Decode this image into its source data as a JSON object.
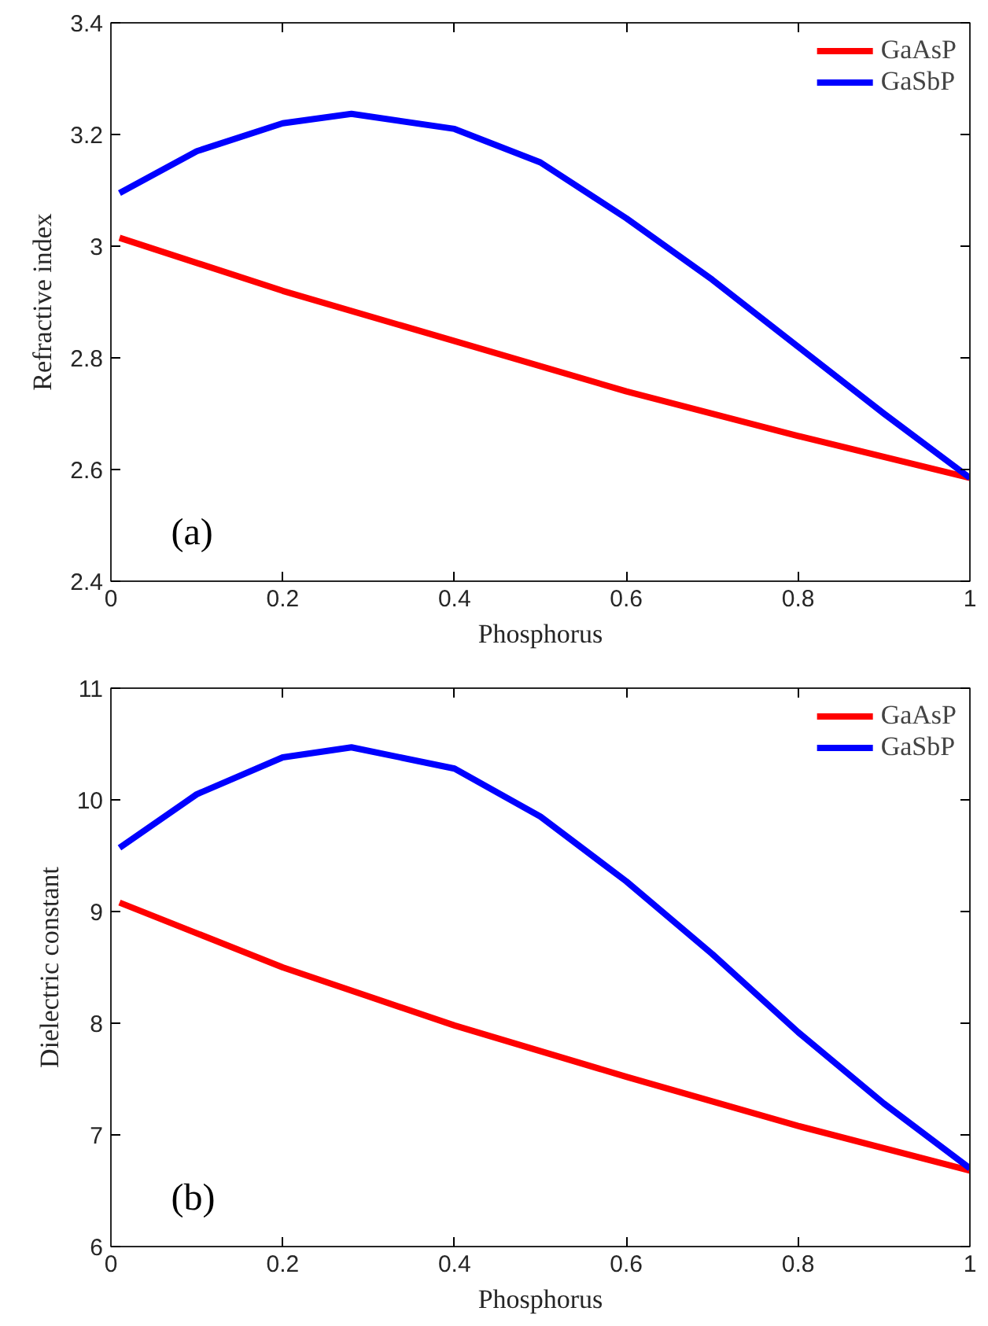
{
  "chart_data": [
    {
      "type": "line",
      "xlabel": "Phosphorus",
      "ylabel": "Refractive index",
      "annotations": [
        "(a)"
      ],
      "xlim": [
        0,
        1
      ],
      "ylim": [
        2.4,
        3.4
      ],
      "xticks": [
        0,
        0.2,
        0.4,
        0.6,
        0.8,
        1
      ],
      "yticks": [
        2.4,
        2.6,
        2.8,
        3,
        3.2,
        3.4
      ],
      "grid": false,
      "legend": "top right",
      "series": [
        {
          "name": "GaAsP",
          "color": "#ff0000",
          "x": [
            0.01,
            0.2,
            0.4,
            0.6,
            0.8,
            1.0
          ],
          "values": [
            3.015,
            2.92,
            2.83,
            2.74,
            2.66,
            2.585
          ]
        },
        {
          "name": "GaSbP",
          "color": "#0000ff",
          "x": [
            0.01,
            0.1,
            0.2,
            0.28,
            0.4,
            0.5,
            0.6,
            0.7,
            0.8,
            0.9,
            1.0
          ],
          "values": [
            3.095,
            3.17,
            3.22,
            3.237,
            3.21,
            3.15,
            3.05,
            2.94,
            2.82,
            2.7,
            2.585
          ]
        }
      ]
    },
    {
      "type": "line",
      "xlabel": "Phosphorus",
      "ylabel": "Dielectric constant",
      "annotations": [
        "(b)"
      ],
      "xlim": [
        0,
        1
      ],
      "ylim": [
        6,
        11
      ],
      "xticks": [
        0,
        0.2,
        0.4,
        0.6,
        0.8,
        1
      ],
      "yticks": [
        6,
        7,
        8,
        9,
        10,
        11
      ],
      "grid": false,
      "legend": "top right",
      "series": [
        {
          "name": "GaAsP",
          "color": "#ff0000",
          "x": [
            0.01,
            0.2,
            0.4,
            0.6,
            0.8,
            1.0
          ],
          "values": [
            9.08,
            8.5,
            7.98,
            7.52,
            7.08,
            6.68
          ]
        },
        {
          "name": "GaSbP",
          "color": "#0000ff",
          "x": [
            0.01,
            0.1,
            0.2,
            0.28,
            0.4,
            0.5,
            0.6,
            0.7,
            0.8,
            0.9,
            1.0
          ],
          "values": [
            9.57,
            10.05,
            10.38,
            10.47,
            10.28,
            9.85,
            9.27,
            8.62,
            7.92,
            7.28,
            6.7
          ]
        }
      ]
    }
  ]
}
